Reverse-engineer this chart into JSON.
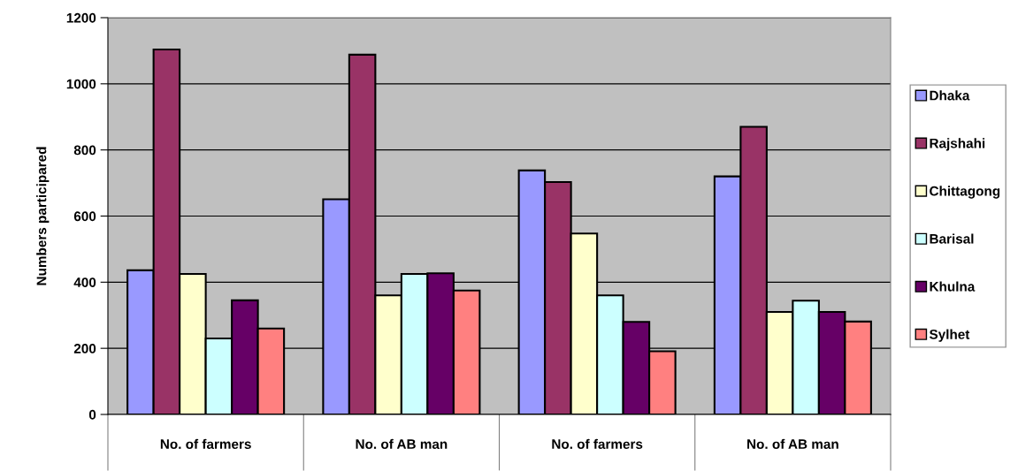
{
  "chart_data": {
    "type": "bar",
    "ylabel": "Numbers participared",
    "categories": [
      "No. of farmers",
      "No. of AB man",
      "No. of farmers",
      "No. of AB man"
    ],
    "series": [
      {
        "name": "Dhaka",
        "color": "#9999ff",
        "values": [
          436,
          651,
          738,
          720
        ]
      },
      {
        "name": "Rajshahi",
        "color": "#993366",
        "values": [
          1104,
          1088,
          703,
          870
        ]
      },
      {
        "name": "Chittagong",
        "color": "#ffffcc",
        "values": [
          425,
          360,
          547,
          310
        ]
      },
      {
        "name": "Barisal",
        "color": "#ccffff",
        "values": [
          230,
          425,
          360,
          344
        ]
      },
      {
        "name": "Khulna",
        "color": "#660066",
        "values": [
          345,
          427,
          280,
          310
        ]
      },
      {
        "name": "Sylhet",
        "color": "#ff8080",
        "values": [
          260,
          375,
          191,
          281
        ]
      }
    ],
    "ylim": [
      0,
      1200
    ],
    "yticks": [
      0,
      200,
      400,
      600,
      800,
      1000,
      1200
    ],
    "grid": "y",
    "legend": "right"
  }
}
